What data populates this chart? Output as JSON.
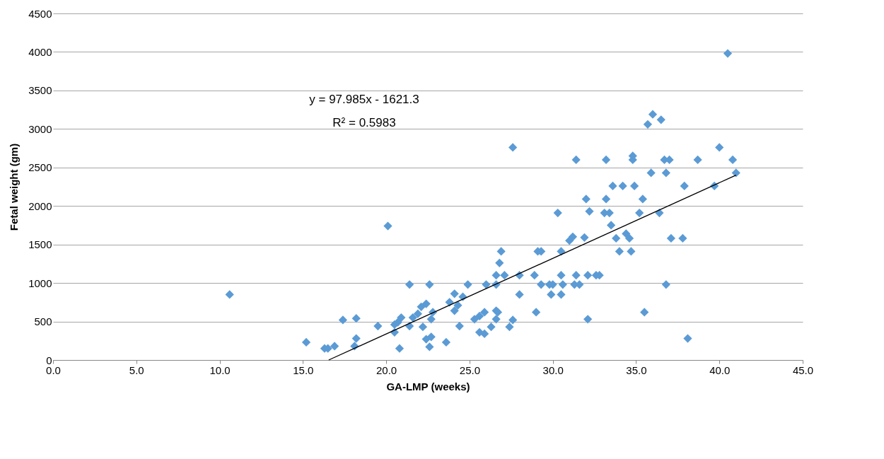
{
  "chart_data": {
    "type": "scatter",
    "xlabel": "GA-LMP (weeks)",
    "ylabel": "Fetal weight (gm)",
    "xlim": [
      0,
      45
    ],
    "xticks": [
      {
        "value": 0,
        "label": "0.0"
      },
      {
        "value": 5,
        "label": "5.0"
      },
      {
        "value": 10,
        "label": "10.0"
      },
      {
        "value": 15,
        "label": "15.0"
      },
      {
        "value": 20,
        "label": "20.0"
      },
      {
        "value": 25,
        "label": "25.0"
      },
      {
        "value": 30,
        "label": "30.0"
      },
      {
        "value": 35,
        "label": "35.0"
      },
      {
        "value": 40,
        "label": "40.0"
      },
      {
        "value": 45,
        "label": "45.0"
      }
    ],
    "ylim": [
      0,
      4500
    ],
    "yticks": [
      0,
      500,
      1000,
      1500,
      2000,
      2500,
      3000,
      3500,
      4000,
      4500
    ],
    "grid": "y",
    "marker": "diamond",
    "annotations": [
      "y = 97.985x - 1621.3",
      "R² = 0.5983"
    ],
    "series": [
      {
        "color": "#5b9bd5",
        "x": [
          10.6,
          15.2,
          16.3,
          16.5,
          16.9,
          17.4,
          18.2,
          18.2,
          18.1,
          19.5,
          20.1,
          20.5,
          20.5,
          20.7,
          20.8,
          20.9,
          21.4,
          21.4,
          21.6,
          21.9,
          22.1,
          22.2,
          22.4,
          22.4,
          22.6,
          22.6,
          22.7,
          22.7,
          22.8,
          23.6,
          23.8,
          24.1,
          24.1,
          24.3,
          24.4,
          24.6,
          24.9,
          25.3,
          25.6,
          25.6,
          25.9,
          25.9,
          26.0,
          26.3,
          26.6,
          26.6,
          26.7,
          26.6,
          26.6,
          26.8,
          26.9,
          27.1,
          27.4,
          27.6,
          27.6,
          28.0,
          28.0,
          28.9,
          29.0,
          29.1,
          29.3,
          29.3,
          29.8,
          29.9,
          30.0,
          30.3,
          30.5,
          30.5,
          30.5,
          30.6,
          31.0,
          31.2,
          31.3,
          31.4,
          31.4,
          31.6,
          31.9,
          32.0,
          32.1,
          32.1,
          32.2,
          32.6,
          32.8,
          33.1,
          33.2,
          33.2,
          33.4,
          33.5,
          33.8,
          33.6,
          34.0,
          34.2,
          34.4,
          34.6,
          34.7,
          34.8,
          34.8,
          34.9,
          35.2,
          35.4,
          35.5,
          35.7,
          35.9,
          36.0,
          36.5,
          36.4,
          36.7,
          36.8,
          36.8,
          37.0,
          37.1,
          37.8,
          37.9,
          38.1,
          38.7,
          39.7,
          40.0,
          40.5,
          40.8,
          41.0
        ],
        "values": [
          850,
          230,
          150,
          150,
          180,
          520,
          540,
          280,
          180,
          440,
          1740,
          460,
          360,
          490,
          150,
          550,
          440,
          980,
          550,
          600,
          690,
          430,
          730,
          270,
          980,
          170,
          300,
          530,
          620,
          230,
          750,
          860,
          640,
          710,
          440,
          820,
          980,
          530,
          570,
          360,
          340,
          620,
          980,
          430,
          530,
          640,
          620,
          980,
          1100,
          1260,
          1410,
          1100,
          430,
          520,
          2760,
          850,
          1100,
          1100,
          620,
          1410,
          1410,
          980,
          980,
          850,
          980,
          1910,
          1410,
          1100,
          850,
          980,
          1550,
          1600,
          980,
          1100,
          2600,
          980,
          1590,
          2090,
          530,
          1100,
          1930,
          1100,
          1100,
          1910,
          2600,
          2090,
          1910,
          1750,
          1580,
          2260,
          1410,
          2260,
          1640,
          1580,
          1410,
          2650,
          2600,
          2260,
          1910,
          2090,
          620,
          3060,
          2430,
          3190,
          3120,
          1910,
          2600,
          2430,
          980,
          2600,
          1580,
          1580,
          2260,
          280,
          2600,
          2260,
          2760,
          3980,
          2600,
          2430
        ]
      },
      {
        "type": "line",
        "marker": "none",
        "line_style": "solid",
        "color": "#000000",
        "x": [
          16.55,
          41.0
        ],
        "values": [
          0,
          2400
        ]
      }
    ]
  }
}
